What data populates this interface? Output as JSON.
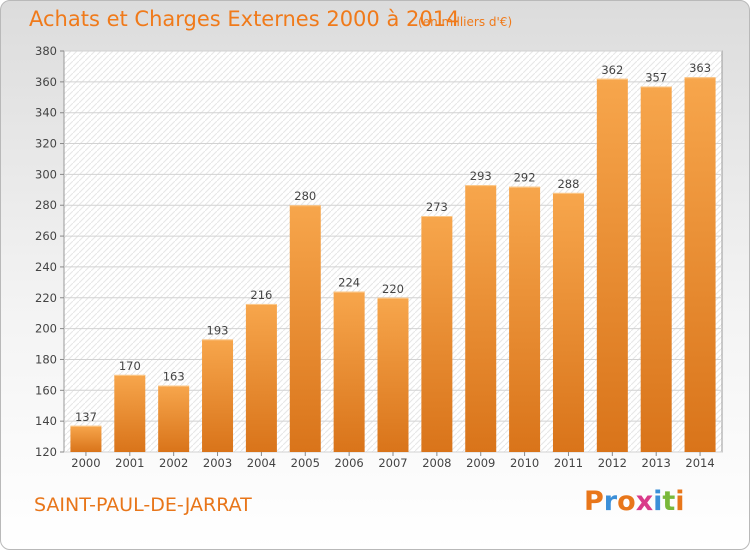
{
  "header": {
    "title": "Achats et Charges Externes 2000 à 2014",
    "subtitle": "(en milliers d'€)"
  },
  "footer": {
    "location": "SAINT-PAUL-DE-JARRAT",
    "logo_text": "Proxiti"
  },
  "colors": {
    "bar_light": "#f7a64c",
    "bar_dark": "#d9741a",
    "accent": "#f07a1a"
  },
  "chart_data": {
    "type": "bar",
    "categories": [
      "2000",
      "2001",
      "2002",
      "2003",
      "2004",
      "2005",
      "2006",
      "2007",
      "2008",
      "2009",
      "2010",
      "2011",
      "2012",
      "2013",
      "2014"
    ],
    "values": [
      137,
      170,
      163,
      193,
      216,
      280,
      224,
      220,
      273,
      293,
      292,
      288,
      362,
      357,
      363
    ],
    "yticks": [
      120,
      140,
      160,
      180,
      200,
      220,
      240,
      260,
      280,
      300,
      320,
      340,
      360,
      380
    ],
    "ylim": [
      120,
      380
    ],
    "grid": true,
    "legend": "none"
  }
}
